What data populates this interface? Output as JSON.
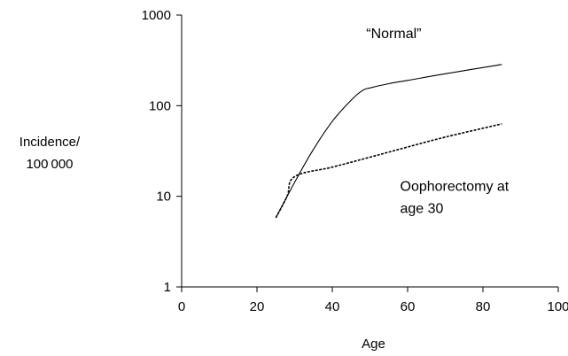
{
  "chart_data": {
    "type": "line",
    "xlabel": "Age",
    "ylabel_lines": [
      "Incidence/",
      "100 000"
    ],
    "xlim": [
      0,
      100
    ],
    "ylim": [
      1,
      1000
    ],
    "yscale": "log",
    "grid": false,
    "x_ticks": [
      0,
      20,
      40,
      60,
      80,
      100
    ],
    "y_ticks": [
      1,
      10,
      100,
      1000
    ],
    "x_tick_labels": [
      "0",
      "20",
      "40",
      "60",
      "80",
      "100"
    ],
    "y_tick_labels": [
      "1",
      "10",
      "100",
      "1000"
    ],
    "series": [
      {
        "style": "solid",
        "x": [
          25,
          28,
          31,
          35,
          40,
          45,
          48,
          50,
          55,
          60,
          70,
          85
        ],
        "y": [
          5.8,
          10,
          17,
          33,
          67,
          115,
          147,
          157,
          175,
          190,
          225,
          285
        ]
      },
      {
        "style": "dashed",
        "x": [
          25,
          28,
          30,
          40,
          50,
          60,
          70,
          85
        ],
        "y": [
          5.8,
          10,
          16.5,
          21,
          27,
          35,
          45,
          63
        ]
      }
    ],
    "annotations": [
      {
        "lines": [
          "“Normal”"
        ],
        "x": 49,
        "y": 560
      },
      {
        "lines": [
          "Oophorectomy at",
          "age 30"
        ],
        "x": 58,
        "y": 11.5
      }
    ]
  }
}
